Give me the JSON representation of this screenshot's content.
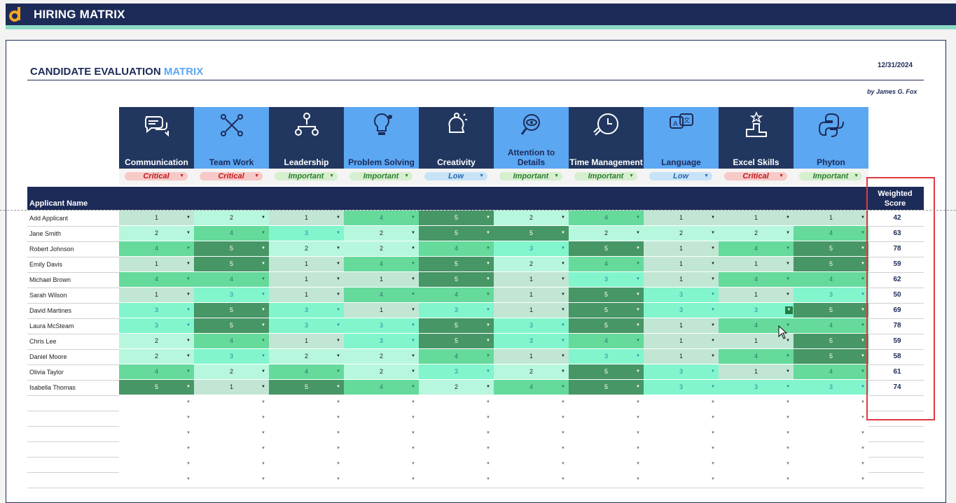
{
  "app": {
    "title": "HIRING MATRIX"
  },
  "matrix": {
    "title_main": "CANDIDATE EVALUATION ",
    "title_accent": "MATRIX",
    "date": "12/31/2024",
    "author": "by James G. Fox",
    "applicant_header": "Applicant Name",
    "weighted_header": "Weighted Score"
  },
  "colors": {
    "navy": "#1d2b58",
    "blue": "#5ba7f2",
    "teal": "#8cd9c5",
    "highlight": "#e0393f"
  },
  "criteria": [
    {
      "label": "Communication",
      "priority": "Critical",
      "icon": "speech-bubbles-icon"
    },
    {
      "label": "Team Work",
      "priority": "Critical",
      "icon": "team-icon"
    },
    {
      "label": "Leadership",
      "priority": "Important",
      "icon": "org-chart-icon"
    },
    {
      "label": "Problem Solving",
      "priority": "Important",
      "icon": "lightbulb-icon"
    },
    {
      "label": "Creativity",
      "priority": "Low",
      "icon": "head-idea-icon"
    },
    {
      "label": "Attention to Details",
      "priority": "Important",
      "icon": "magnifier-eye-icon"
    },
    {
      "label": "Time Management",
      "priority": "Important",
      "icon": "clock-icon"
    },
    {
      "label": "Language",
      "priority": "Low",
      "icon": "translate-icon"
    },
    {
      "label": "Excel Skills",
      "priority": "Critical",
      "icon": "podium-icon"
    },
    {
      "label": "Phyton",
      "priority": "Important",
      "icon": "python-icon"
    }
  ],
  "applicants": [
    {
      "name": "Add Applicant",
      "scores": [
        1,
        2,
        1,
        4,
        5,
        2,
        4,
        1,
        1,
        1
      ],
      "weighted": "42"
    },
    {
      "name": "Jane Smith",
      "scores": [
        2,
        4,
        3,
        2,
        5,
        5,
        2,
        2,
        2,
        4
      ],
      "weighted": "63"
    },
    {
      "name": "Robert Johnson",
      "scores": [
        4,
        5,
        2,
        2,
        4,
        3,
        5,
        1,
        4,
        5
      ],
      "weighted": "78"
    },
    {
      "name": "Emily Davis",
      "scores": [
        1,
        5,
        1,
        4,
        5,
        2,
        4,
        1,
        1,
        5
      ],
      "weighted": "59"
    },
    {
      "name": "Michael Brown",
      "scores": [
        4,
        4,
        1,
        1,
        5,
        1,
        3,
        1,
        4,
        4
      ],
      "weighted": "62"
    },
    {
      "name": "Sarah Wilson",
      "scores": [
        1,
        3,
        1,
        4,
        4,
        1,
        5,
        3,
        1,
        3
      ],
      "weighted": "50"
    },
    {
      "name": "David Martines",
      "scores": [
        3,
        5,
        3,
        1,
        3,
        1,
        5,
        3,
        3,
        5
      ],
      "weighted": "69"
    },
    {
      "name": "Laura McSteam",
      "scores": [
        3,
        5,
        3,
        3,
        5,
        3,
        5,
        1,
        4,
        4
      ],
      "weighted": "78"
    },
    {
      "name": "Chris Lee",
      "scores": [
        2,
        4,
        1,
        3,
        5,
        3,
        4,
        1,
        1,
        5
      ],
      "weighted": "59"
    },
    {
      "name": "Daniel Moore",
      "scores": [
        2,
        3,
        2,
        2,
        4,
        1,
        3,
        1,
        4,
        5
      ],
      "weighted": "58"
    },
    {
      "name": "Olivia Taylor",
      "scores": [
        4,
        2,
        4,
        2,
        3,
        2,
        5,
        3,
        1,
        4
      ],
      "weighted": "61"
    },
    {
      "name": "Isabella Thomas",
      "scores": [
        5,
        1,
        5,
        4,
        2,
        4,
        5,
        3,
        3,
        3
      ],
      "weighted": "74"
    }
  ],
  "empty_rows": 6
}
